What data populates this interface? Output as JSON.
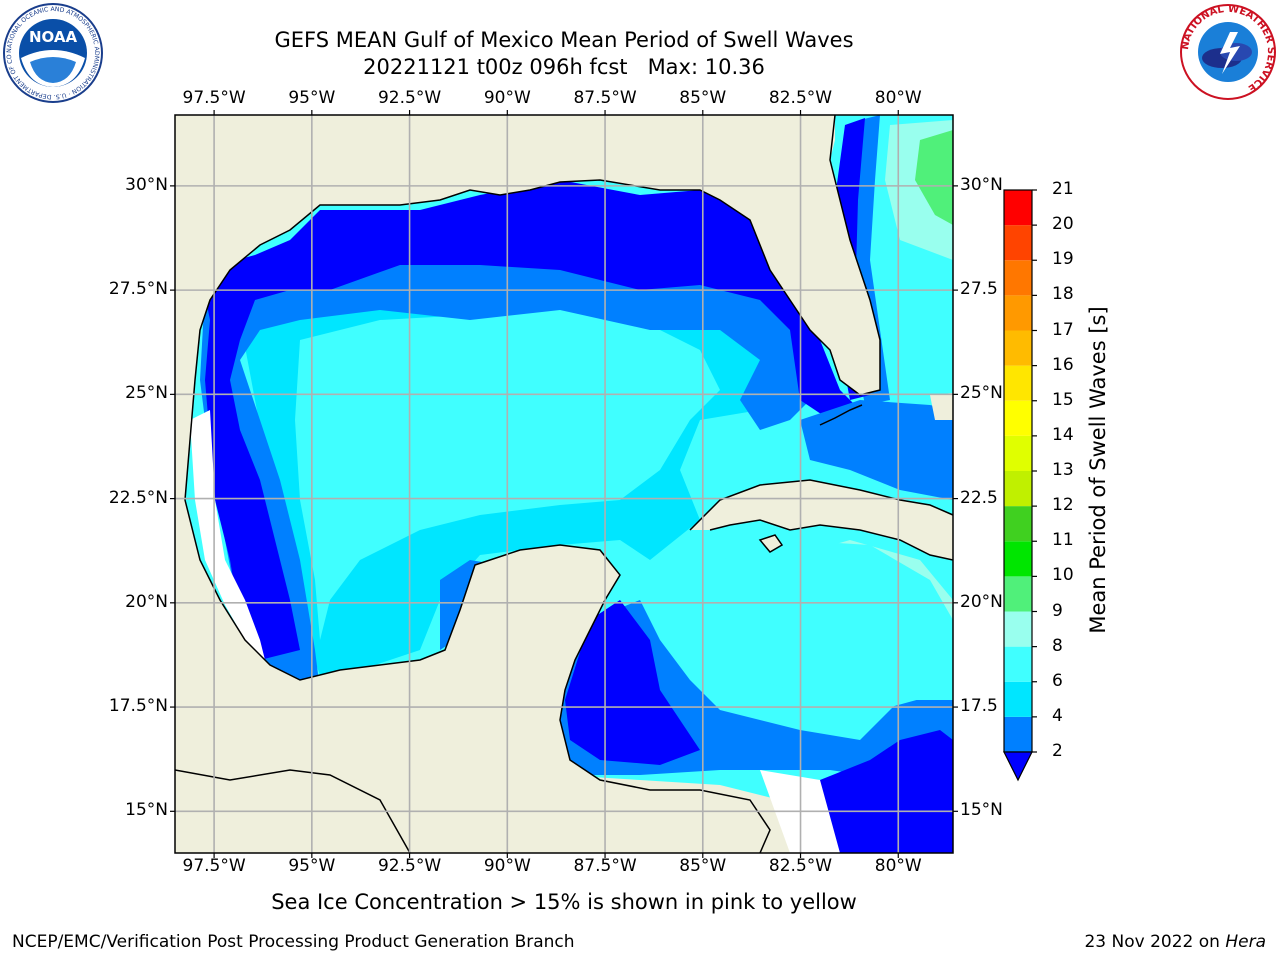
{
  "title": {
    "line1": "GEFS MEAN Gulf of Mexico Mean Period of Swell Waves",
    "line2": "20221121 t00z 096h fcst   Max: 10.36"
  },
  "map": {
    "extent_lon": [
      -98.5,
      -78.6
    ],
    "extent_lat": [
      14.0,
      31.7
    ],
    "lon_ticks": [
      {
        "value": -97.5,
        "label": "97.5°W"
      },
      {
        "value": -95,
        "label": "95°W"
      },
      {
        "value": -92.5,
        "label": "92.5°W"
      },
      {
        "value": -90,
        "label": "90°W"
      },
      {
        "value": -87.5,
        "label": "87.5°W"
      },
      {
        "value": -85,
        "label": "85°W"
      },
      {
        "value": -82.5,
        "label": "82.5°W"
      },
      {
        "value": -80,
        "label": "80°W"
      }
    ],
    "lat_ticks_left": [
      {
        "value": 30,
        "label": "30°N"
      },
      {
        "value": 27.5,
        "label": "27.5°N"
      },
      {
        "value": 25,
        "label": "25°N"
      },
      {
        "value": 22.5,
        "label": "22.5°N"
      },
      {
        "value": 20,
        "label": "20°N"
      },
      {
        "value": 17.5,
        "label": "17.5°N"
      },
      {
        "value": 15,
        "label": "15°N"
      }
    ],
    "lat_ticks_right": [
      {
        "value": 30,
        "label": "30°N"
      },
      {
        "value": 27.5,
        "label": "27.5"
      },
      {
        "value": 25,
        "label": "25°N"
      },
      {
        "value": 22.5,
        "label": "22.5"
      },
      {
        "value": 20,
        "label": "20°N"
      },
      {
        "value": 17.5,
        "label": "17.5"
      },
      {
        "value": 15,
        "label": "15°N"
      }
    ],
    "gridlines": true,
    "land_color": "#efefdc",
    "nodata_color": "#ffffff"
  },
  "colorbar": {
    "title": "Mean Period of Swell Waves [s]",
    "ticks": [
      2,
      4,
      6,
      8,
      9,
      10,
      11,
      12,
      13,
      14,
      15,
      16,
      17,
      18,
      19,
      20,
      21
    ],
    "levels": [
      {
        "from": 2,
        "to": 4,
        "color": "#0080ff"
      },
      {
        "from": 4,
        "to": 6,
        "color": "#00e6ff"
      },
      {
        "from": 6,
        "to": 8,
        "color": "#40ffff"
      },
      {
        "from": 8,
        "to": 9,
        "color": "#99ffee"
      },
      {
        "from": 9,
        "to": 10,
        "color": "#50f07a"
      },
      {
        "from": 10,
        "to": 11,
        "color": "#00e600"
      },
      {
        "from": 11,
        "to": 12,
        "color": "#40d020"
      },
      {
        "from": 12,
        "to": 13,
        "color": "#c0f000"
      },
      {
        "from": 13,
        "to": 14,
        "color": "#e0ff00"
      },
      {
        "from": 14,
        "to": 15,
        "color": "#ffff00"
      },
      {
        "from": 15,
        "to": 16,
        "color": "#ffe600"
      },
      {
        "from": 16,
        "to": 17,
        "color": "#ffbb00"
      },
      {
        "from": 17,
        "to": 18,
        "color": "#ff9900"
      },
      {
        "from": 18,
        "to": 19,
        "color": "#ff7700"
      },
      {
        "from": 19,
        "to": 20,
        "color": "#ff4400"
      },
      {
        "from": 20,
        "to": 21,
        "color": "#ff0000"
      }
    ],
    "under_color": "#0000ff"
  },
  "subtitle": "Sea Ice Concentration > 15% is shown in pink to yellow",
  "footer": {
    "left": "NCEP/EMC/Verification Post Processing Product Generation Branch",
    "right_prefix": "23 Nov 2022 on ",
    "right_host": "Hera"
  },
  "logos": {
    "noaa": {
      "text": "NOAA",
      "ring_text": "NATIONAL OCEANIC AND ATMOSPHERIC ADMINISTRATION · U.S. DEPARTMENT OF COMMERCE"
    },
    "nws": {
      "ring_text": "NATIONAL WEATHER SERVICE"
    }
  }
}
